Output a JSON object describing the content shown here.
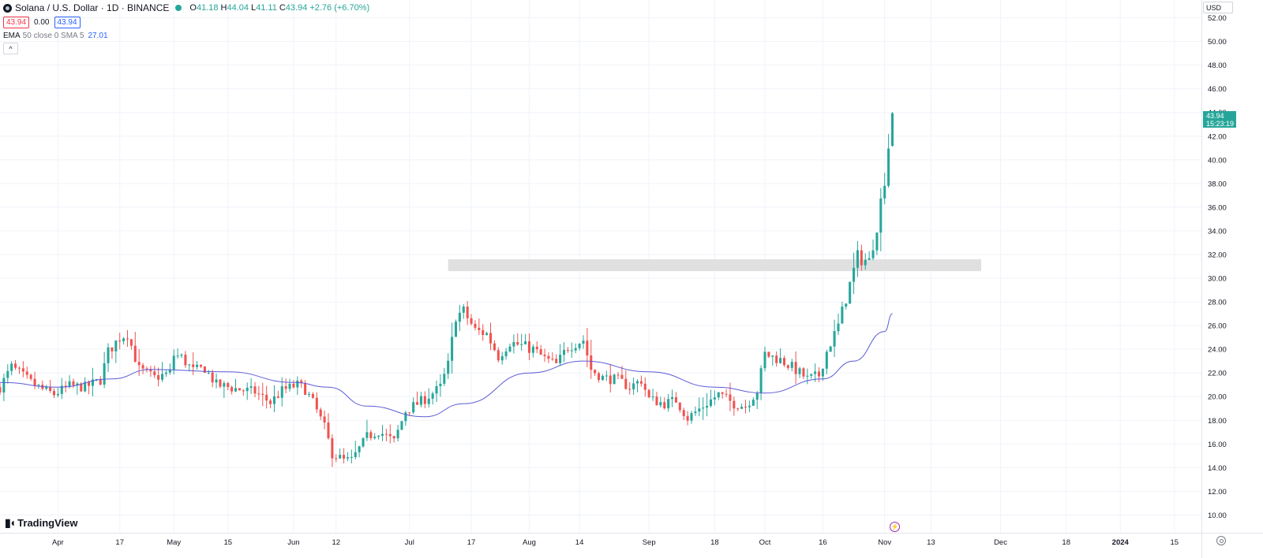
{
  "header": {
    "symbol_title": "Solana / U.S. Dollar · 1D · BINANCE",
    "ohlc": {
      "o_label": "O",
      "o_value": "41.18",
      "h_label": "H",
      "h_value": "44.04",
      "l_label": "L",
      "l_value": "41.11",
      "c_label": "C",
      "c_value": "43.94",
      "change": "+2.76 (+6.70%)"
    },
    "bid": "43.94",
    "spread": "0.00",
    "ask": "43.94",
    "indicator": {
      "name": "EMA",
      "params": "50 close 0 SMA 5",
      "value": "27.01"
    },
    "collapse_glyph": "^"
  },
  "currency": "USD",
  "logo_text": "TradingView",
  "last_price": {
    "value": "43.94",
    "countdown": "15:23:19"
  },
  "colors": {
    "up": "#26a69a",
    "down": "#ef5350",
    "ema": "#5b5bd6",
    "zone": "#e0e0e0"
  },
  "chart_data": {
    "type": "candlestick",
    "symbol": "SOLUSD",
    "interval": "1D",
    "y_axis": {
      "ticks": [
        10,
        12,
        14,
        16,
        18,
        20,
        22,
        24,
        26,
        28,
        30,
        32,
        34,
        36,
        38,
        40,
        42,
        44,
        46,
        48,
        50,
        52
      ],
      "range": [
        8.5,
        53.5
      ],
      "labels": [
        "10.00",
        "12.00",
        "14.00",
        "16.00",
        "18.00",
        "20.00",
        "22.00",
        "24.00",
        "26.00",
        "28.00",
        "30.00",
        "32.00",
        "34.00",
        "36.00",
        "38.00",
        "40.00",
        "42.00",
        "44.00",
        "46.00",
        "48.00",
        "50.00",
        "52.00"
      ]
    },
    "x_axis": {
      "start_date": "2023-03-17",
      "end_date": "2024-01-22",
      "ticks": [
        {
          "label": "Apr",
          "date": "2023-04-01"
        },
        {
          "label": "17",
          "date": "2023-04-17"
        },
        {
          "label": "May",
          "date": "2023-05-01"
        },
        {
          "label": "15",
          "date": "2023-05-15"
        },
        {
          "label": "Jun",
          "date": "2023-06-01"
        },
        {
          "label": "12",
          "date": "2023-06-12"
        },
        {
          "label": "Jul",
          "date": "2023-07-01"
        },
        {
          "label": "17",
          "date": "2023-07-17"
        },
        {
          "label": "Aug",
          "date": "2023-08-01"
        },
        {
          "label": "14",
          "date": "2023-08-14"
        },
        {
          "label": "Sep",
          "date": "2023-09-01"
        },
        {
          "label": "18",
          "date": "2023-09-18"
        },
        {
          "label": "Oct",
          "date": "2023-10-01"
        },
        {
          "label": "16",
          "date": "2023-10-16"
        },
        {
          "label": "Nov",
          "date": "2023-11-01"
        },
        {
          "label": "13",
          "date": "2023-11-13"
        },
        {
          "label": "Dec",
          "date": "2023-12-01"
        },
        {
          "label": "18",
          "date": "2023-12-18"
        },
        {
          "label": "2024",
          "date": "2024-01-01",
          "bold": true
        },
        {
          "label": "15",
          "date": "2024-01-15"
        }
      ]
    },
    "zone": {
      "x_start": "2023-07-11",
      "x_end": "2023-11-26",
      "y_low": 30.6,
      "y_high": 31.6
    },
    "keypoints": [
      [
        "2023-03-17",
        20.8
      ],
      [
        "2023-03-20",
        22.5
      ],
      [
        "2023-03-22",
        22.0
      ],
      [
        "2023-03-25",
        21.2
      ],
      [
        "2023-03-28",
        20.6
      ],
      [
        "2023-03-31",
        20.2
      ],
      [
        "2023-04-04",
        20.9
      ],
      [
        "2023-04-08",
        20.8
      ],
      [
        "2023-04-12",
        21.4
      ],
      [
        "2023-04-14",
        23.8
      ],
      [
        "2023-04-17",
        25.0
      ],
      [
        "2023-04-19",
        25.3
      ],
      [
        "2023-04-22",
        22.3
      ],
      [
        "2023-04-26",
        21.6
      ],
      [
        "2023-04-30",
        22.0
      ],
      [
        "2023-05-01",
        23.5
      ],
      [
        "2023-05-03",
        23.3
      ],
      [
        "2023-05-06",
        22.2
      ],
      [
        "2023-05-09",
        22.4
      ],
      [
        "2023-05-12",
        21.0
      ],
      [
        "2023-05-18",
        20.6
      ],
      [
        "2023-05-22",
        20.4
      ],
      [
        "2023-05-26",
        19.5
      ],
      [
        "2023-05-29",
        20.5
      ],
      [
        "2023-06-02",
        21.0
      ],
      [
        "2023-06-04",
        20.6
      ],
      [
        "2023-06-06",
        19.5
      ],
      [
        "2023-06-09",
        17.4
      ],
      [
        "2023-06-11",
        15.2
      ],
      [
        "2023-06-14",
        14.6
      ],
      [
        "2023-06-16",
        14.6
      ],
      [
        "2023-06-20",
        16.6
      ],
      [
        "2023-06-23",
        17.1
      ],
      [
        "2023-06-27",
        16.2
      ],
      [
        "2023-06-30",
        18.8
      ],
      [
        "2023-07-05",
        19.8
      ],
      [
        "2023-07-09",
        20.8
      ],
      [
        "2023-07-11",
        22.7
      ],
      [
        "2023-07-13",
        26.8
      ],
      [
        "2023-07-15",
        27.2
      ],
      [
        "2023-07-18",
        25.6
      ],
      [
        "2023-07-21",
        25.3
      ],
      [
        "2023-07-24",
        23.4
      ],
      [
        "2023-07-27",
        24.6
      ],
      [
        "2023-08-02",
        24.0
      ],
      [
        "2023-08-05",
        23.2
      ],
      [
        "2023-08-08",
        22.7
      ],
      [
        "2023-08-11",
        24.2
      ],
      [
        "2023-08-15",
        24.8
      ],
      [
        "2023-08-17",
        22.3
      ],
      [
        "2023-08-20",
        21.6
      ],
      [
        "2023-08-24",
        21.4
      ],
      [
        "2023-08-27",
        20.8
      ],
      [
        "2023-08-30",
        21.4
      ],
      [
        "2023-09-01",
        19.8
      ],
      [
        "2023-09-05",
        19.4
      ],
      [
        "2023-09-08",
        19.7
      ],
      [
        "2023-09-11",
        18.2
      ],
      [
        "2023-09-15",
        19.2
      ],
      [
        "2023-09-19",
        20.2
      ],
      [
        "2023-09-23",
        19.4
      ],
      [
        "2023-09-26",
        19.2
      ],
      [
        "2023-09-29",
        20.5
      ],
      [
        "2023-10-01",
        23.6
      ],
      [
        "2023-10-05",
        23.1
      ],
      [
        "2023-10-08",
        22.5
      ],
      [
        "2023-10-12",
        21.5
      ],
      [
        "2023-10-15",
        21.8
      ],
      [
        "2023-10-17",
        23.8
      ],
      [
        "2023-10-20",
        26.0
      ],
      [
        "2023-10-23",
        29.5
      ],
      [
        "2023-10-25",
        31.8
      ],
      [
        "2023-10-28",
        31.4
      ],
      [
        "2023-10-30",
        34.5
      ],
      [
        "2023-11-01",
        38.5
      ],
      [
        "2023-11-02",
        41.2
      ],
      [
        "2023-11-03",
        43.94
      ]
    ],
    "ema": {
      "name": "EMA 50 close 0 SMA 5",
      "points": [
        [
          "2023-03-17",
          21.2
        ],
        [
          "2023-04-01",
          20.8
        ],
        [
          "2023-04-15",
          21.5
        ],
        [
          "2023-04-25",
          22.3
        ],
        [
          "2023-05-15",
          22.1
        ],
        [
          "2023-06-01",
          21.2
        ],
        [
          "2023-06-10",
          20.8
        ],
        [
          "2023-06-20",
          19.2
        ],
        [
          "2023-07-05",
          18.3
        ],
        [
          "2023-07-15",
          19.4
        ],
        [
          "2023-08-01",
          22.0
        ],
        [
          "2023-08-15",
          23.0
        ],
        [
          "2023-09-01",
          22.1
        ],
        [
          "2023-09-18",
          20.8
        ],
        [
          "2023-10-01",
          20.3
        ],
        [
          "2023-10-16",
          21.5
        ],
        [
          "2023-10-24",
          23.0
        ],
        [
          "2023-11-01",
          25.5
        ],
        [
          "2023-11-03",
          27.01
        ]
      ]
    }
  }
}
